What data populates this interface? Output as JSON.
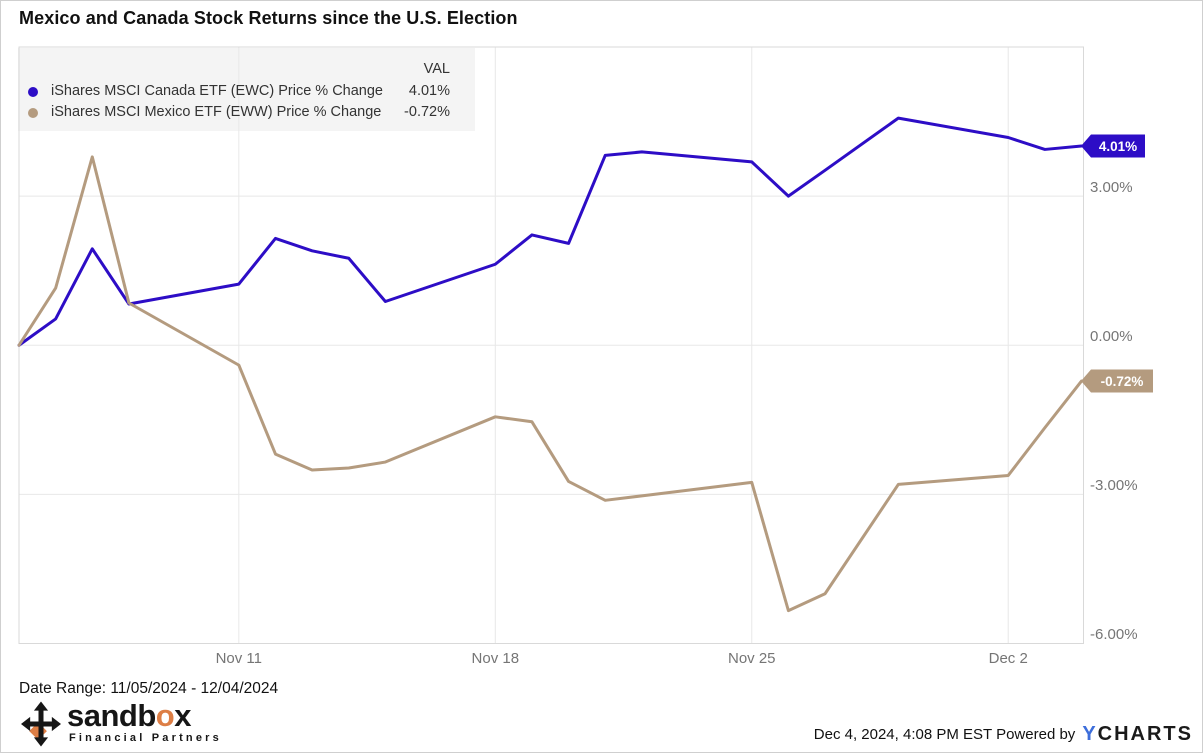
{
  "title": "Mexico and Canada Stock Returns since the U.S. Election",
  "legend": {
    "val_header": "VAL",
    "rows": [
      {
        "label": "iShares MSCI Canada ETF (EWC) Price % Change",
        "value": "4.01%"
      },
      {
        "label": "iShares MSCI Mexico ETF (EWW) Price % Change",
        "value": "-0.72%"
      }
    ]
  },
  "chart_data": {
    "type": "line",
    "title": "Mexico and Canada Stock Returns since the U.S. Election",
    "xlabel": "",
    "ylabel": "Price % Change",
    "ylim": [
      -6,
      6
    ],
    "grid": true,
    "legend_position": "top-left",
    "x": [
      "11/05/2024",
      "11/06/2024",
      "11/07/2024",
      "11/08/2024",
      "11/11/2024",
      "11/12/2024",
      "11/13/2024",
      "11/14/2024",
      "11/15/2024",
      "11/18/2024",
      "11/19/2024",
      "11/20/2024",
      "11/21/2024",
      "11/22/2024",
      "11/25/2024",
      "11/26/2024",
      "11/27/2024",
      "11/29/2024",
      "12/02/2024",
      "12/03/2024",
      "12/04/2024"
    ],
    "x_day_offsets": [
      0,
      1,
      2,
      3,
      6,
      7,
      8,
      9,
      10,
      13,
      14,
      15,
      16,
      17,
      20,
      21,
      22,
      24,
      27,
      28,
      29
    ],
    "series": [
      {
        "name": "iShares MSCI Canada ETF (EWC) Price % Change",
        "color": "#2d0dc6",
        "end_label": "4.01%",
        "values": [
          0,
          0.53,
          1.94,
          0.83,
          1.23,
          2.15,
          1.9,
          1.75,
          0.88,
          1.63,
          2.22,
          2.05,
          3.82,
          3.89,
          3.69,
          3.0,
          3.52,
          4.57,
          4.18,
          3.94,
          4.01
        ]
      },
      {
        "name": "iShares MSCI Mexico ETF (EWW) Price % Change",
        "color": "#b49b7f",
        "end_label": "-0.72%",
        "values": [
          0,
          1.15,
          3.79,
          0.85,
          -0.4,
          -2.19,
          -2.51,
          -2.47,
          -2.35,
          -1.44,
          -1.54,
          -2.74,
          -3.12,
          -3.03,
          -2.76,
          -5.34,
          -5.0,
          -2.8,
          -2.62,
          -1.66,
          -0.72
        ]
      }
    ],
    "y_ticks": [
      {
        "value": 3,
        "label": "3.00%"
      },
      {
        "value": 0,
        "label": "0.00%"
      },
      {
        "value": -3,
        "label": "-3.00%"
      },
      {
        "value": -6,
        "label": "-6.00%"
      }
    ],
    "x_ticks": [
      {
        "offset": 6,
        "label": "Nov 11"
      },
      {
        "offset": 13,
        "label": "Nov 18"
      },
      {
        "offset": 20,
        "label": "Nov 25"
      },
      {
        "offset": 27,
        "label": "Dec 2"
      }
    ]
  },
  "colors": {
    "canada_line": "#2d0dc6",
    "mexico_line": "#b49b7f",
    "grid": "#e8e8e8",
    "plot_border": "#d9d9d9",
    "axis_text": "#757575",
    "legend_bg": "#f4f4f4",
    "sandbox_orange": "#dd7e45",
    "ycharts_blue": "#3d6edb"
  },
  "footer": {
    "date_range": "Date Range: 11/05/2024 - 12/04/2024",
    "sandbox_pre": "sandb",
    "sandbox_o": "o",
    "sandbox_post": "x",
    "sandbox_sub": "Financial Partners",
    "timestamp_powered": "Dec 4, 2024, 4:08 PM EST Powered by",
    "ycharts_y": "Y",
    "ycharts_rest": "CHARTS"
  }
}
